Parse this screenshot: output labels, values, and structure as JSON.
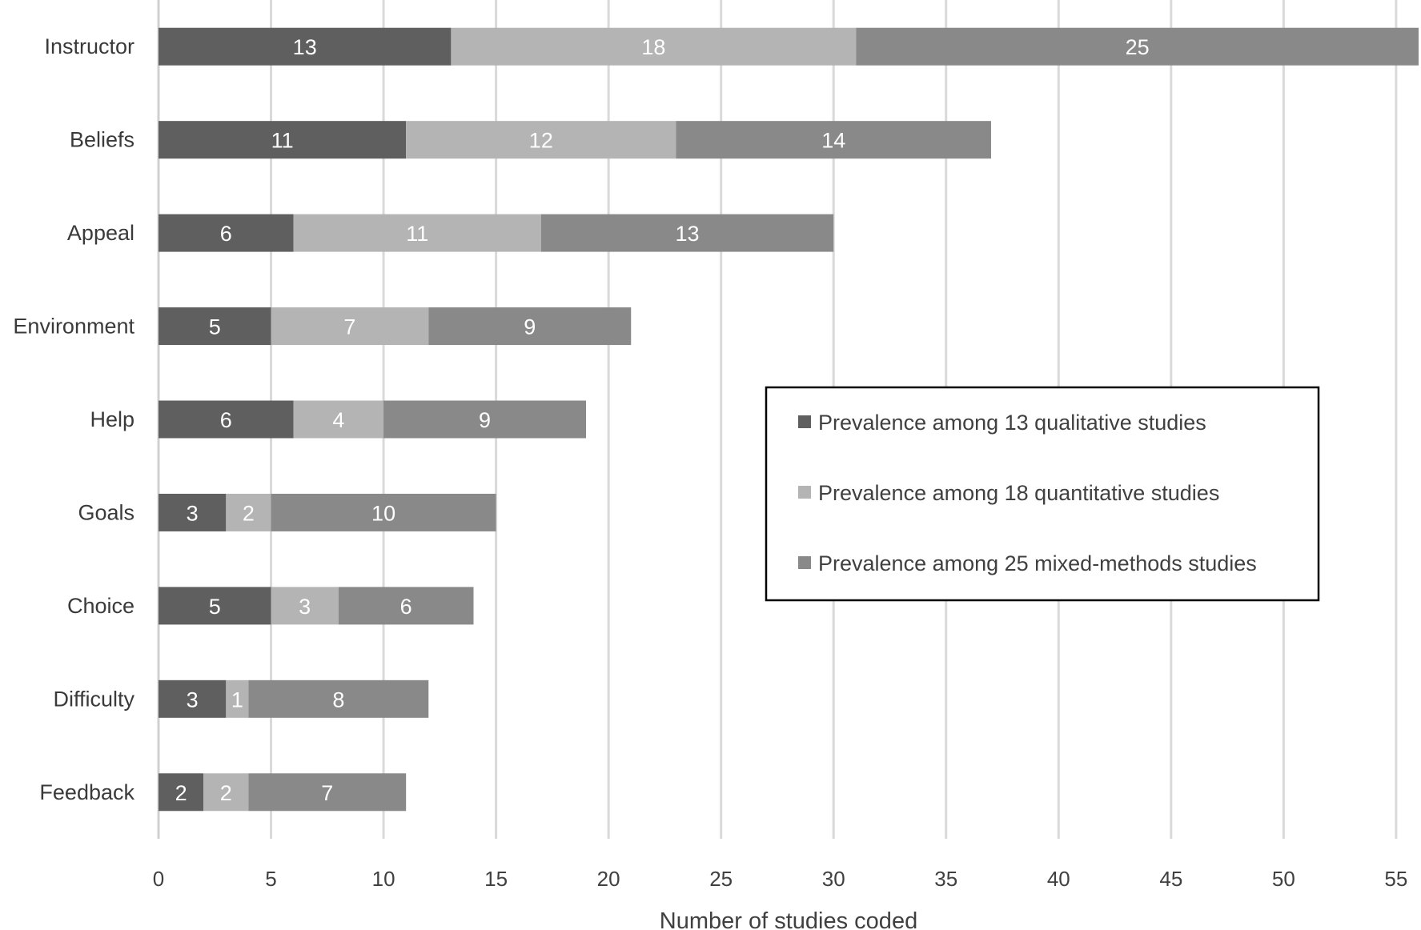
{
  "chart_data": {
    "type": "bar",
    "orientation": "horizontal",
    "stacked": true,
    "categories": [
      "Instructor",
      "Beliefs",
      "Appeal",
      "Environment",
      "Help",
      "Goals",
      "Choice",
      "Difficulty",
      "Feedback"
    ],
    "series": [
      {
        "name": "Prevalence among 13 qualitative studies",
        "color": "#5f5f5f",
        "values": [
          13,
          11,
          6,
          5,
          6,
          3,
          5,
          3,
          2
        ]
      },
      {
        "name": "Prevalence among 18 quantitative studies",
        "color": "#b4b4b4",
        "values": [
          18,
          12,
          11,
          7,
          4,
          2,
          3,
          1,
          2
        ]
      },
      {
        "name": "Prevalence among 25 mixed-methods studies",
        "color": "#898989",
        "values": [
          25,
          14,
          13,
          9,
          9,
          10,
          6,
          8,
          7
        ]
      }
    ],
    "xlabel": "Number of studies coded",
    "ylabel": "",
    "xlim": [
      0,
      56
    ],
    "xticks": [
      0,
      5,
      10,
      15,
      20,
      25,
      30,
      35,
      40,
      45,
      50,
      55
    ],
    "grid": true,
    "legend_position": "middle-right",
    "data_labels": true
  }
}
